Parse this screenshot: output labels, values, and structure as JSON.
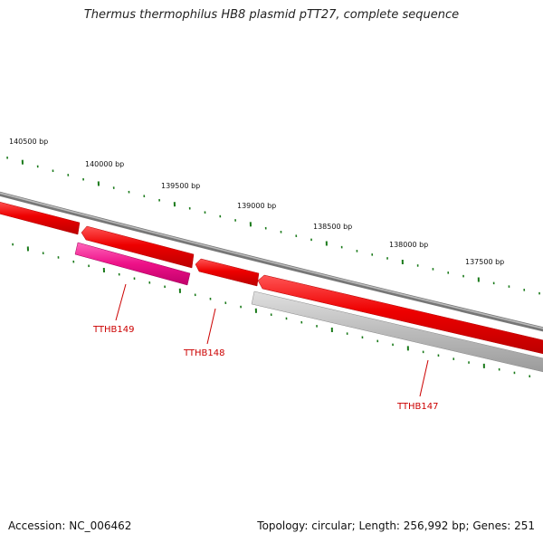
{
  "title": "Thermus thermophilus HB8 plasmid pTT27, complete sequence",
  "footer": {
    "accession": "Accession: NC_006462",
    "summary": "Topology: circular; Length: 256,992 bp; Genes: 251"
  },
  "colors": {
    "backbone": "#8a8a8a",
    "forward_gene": "#ee0000",
    "highlight_gene": "#ee1188",
    "other_gene": "#bbbbbb",
    "ticks": "#1a7a1a",
    "gene_label": "#cc0000"
  },
  "scale_labels": [
    "140500 bp",
    "140000 bp",
    "139500 bp",
    "139000 bp",
    "138500 bp",
    "138000 bp",
    "137500 bp"
  ],
  "gene_labels": [
    "TTHB149",
    "TTHB148",
    "TTHB147"
  ]
}
